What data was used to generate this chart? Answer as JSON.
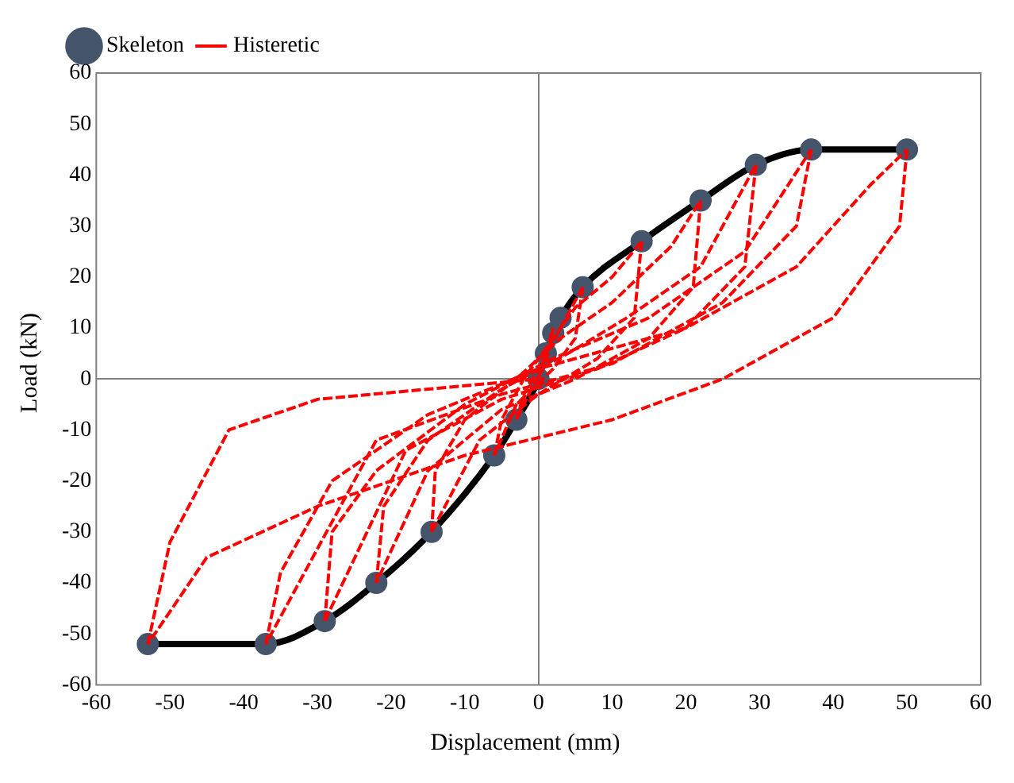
{
  "chart_data": {
    "type": "line",
    "xlabel": "Displacement (mm)",
    "ylabel": "Load (kN)",
    "xlim": [
      -60,
      60
    ],
    "xticks": [
      -60,
      -50,
      -40,
      -30,
      -20,
      -10,
      0,
      10,
      20,
      30,
      40,
      50,
      60
    ],
    "ylim": [
      -60,
      60
    ],
    "yticks": [
      -60,
      -50,
      -40,
      -30,
      -20,
      -10,
      0,
      10,
      20,
      30,
      40,
      50,
      60
    ],
    "legend": "top left",
    "series": [
      {
        "name": "Skeleton",
        "color": "#000000",
        "marker": "circle",
        "line_style": "solid",
        "x": [
          -53,
          -37,
          -29,
          -22,
          -14.5,
          -6,
          -3,
          0,
          1,
          2,
          3,
          6,
          14,
          22,
          29.5,
          37,
          50
        ],
        "values": [
          -52,
          -52,
          -47.5,
          -40,
          -30,
          -15,
          -8,
          0,
          5,
          9,
          12,
          18,
          27,
          35,
          42,
          45,
          45
        ]
      },
      {
        "name": "Histeretic",
        "color": "#ff0000",
        "marker": "none",
        "line_style": "dashed",
        "x": [
          0,
          2
        ],
        "values": [
          0,
          10
        ]
      },
      {
        "color": "#ff0000",
        "marker": "none",
        "line_style": "dashed",
        "x": [
          2,
          1,
          -1,
          -3
        ],
        "values": [
          10,
          3,
          -2,
          -8
        ]
      },
      {
        "color": "#ff0000",
        "marker": "none",
        "line_style": "dashed",
        "x": [
          -3,
          -2,
          0,
          6
        ],
        "values": [
          -8,
          -3,
          2,
          18
        ]
      },
      {
        "color": "#ff0000",
        "marker": "none",
        "line_style": "dashed",
        "x": [
          6,
          5,
          2,
          -3,
          -6
        ],
        "values": [
          18,
          8,
          2,
          -5,
          -15
        ]
      },
      {
        "color": "#ff0000",
        "marker": "none",
        "line_style": "dashed",
        "x": [
          -6,
          -5,
          -2,
          1,
          5,
          10,
          14
        ],
        "values": [
          -15,
          -8,
          0,
          6,
          14,
          20,
          27
        ]
      },
      {
        "color": "#ff0000",
        "marker": "none",
        "line_style": "dashed",
        "x": [
          14,
          13,
          8,
          0,
          -8,
          -14.5
        ],
        "values": [
          27,
          12,
          4,
          -3,
          -12,
          -30
        ]
      },
      {
        "color": "#ff0000",
        "marker": "none",
        "line_style": "dashed",
        "x": [
          -14.5,
          -14,
          -10,
          -3,
          3,
          10,
          18,
          22
        ],
        "values": [
          -30,
          -18,
          -8,
          0,
          8,
          15,
          26,
          35
        ]
      },
      {
        "color": "#ff0000",
        "marker": "none",
        "line_style": "dashed",
        "x": [
          22,
          21,
          15,
          5,
          -5,
          -15,
          -22
        ],
        "values": [
          35,
          18,
          8,
          0,
          -6,
          -18,
          -40
        ]
      },
      {
        "color": "#ff0000",
        "marker": "none",
        "line_style": "dashed",
        "x": [
          -22,
          -21,
          -15,
          -5,
          4,
          12,
          22,
          29.5
        ],
        "values": [
          -40,
          -25,
          -12,
          -2,
          5,
          12,
          22,
          42
        ]
      },
      {
        "color": "#ff0000",
        "marker": "none",
        "line_style": "dashed",
        "x": [
          29.5,
          28,
          20,
          8,
          -5,
          -18,
          -29
        ],
        "values": [
          42,
          22,
          10,
          2,
          -4,
          -14,
          -47.5
        ]
      },
      {
        "color": "#ff0000",
        "marker": "none",
        "line_style": "dashed",
        "x": [
          -29,
          -28,
          -22,
          -10,
          2,
          15,
          28,
          37
        ],
        "values": [
          -47.5,
          -30,
          -18,
          -5,
          4,
          12,
          25,
          45
        ]
      },
      {
        "color": "#ff0000",
        "marker": "none",
        "line_style": "dashed",
        "x": [
          37,
          35,
          25,
          10,
          -5,
          -22,
          -37
        ],
        "values": [
          45,
          30,
          15,
          3,
          -3,
          -12,
          -52
        ]
      },
      {
        "color": "#ff0000",
        "marker": "none",
        "line_style": "dashed",
        "x": [
          -37,
          -35,
          -28,
          -15,
          0,
          20,
          35,
          45,
          50
        ],
        "values": [
          -52,
          -38,
          -20,
          -7,
          2,
          10,
          22,
          38,
          45
        ]
      },
      {
        "color": "#ff0000",
        "marker": "none",
        "line_style": "dashed",
        "x": [
          50,
          49,
          40,
          25,
          10,
          -10,
          -30,
          -45,
          -53
        ],
        "values": [
          45,
          30,
          12,
          0,
          -8,
          -15,
          -25,
          -35,
          -52
        ]
      },
      {
        "color": "#ff0000",
        "marker": "none",
        "line_style": "dashed",
        "x": [
          -53,
          -50,
          -42,
          -30,
          -15,
          0
        ],
        "values": [
          -52,
          -32,
          -10,
          -4,
          -2,
          0
        ]
      }
    ]
  }
}
